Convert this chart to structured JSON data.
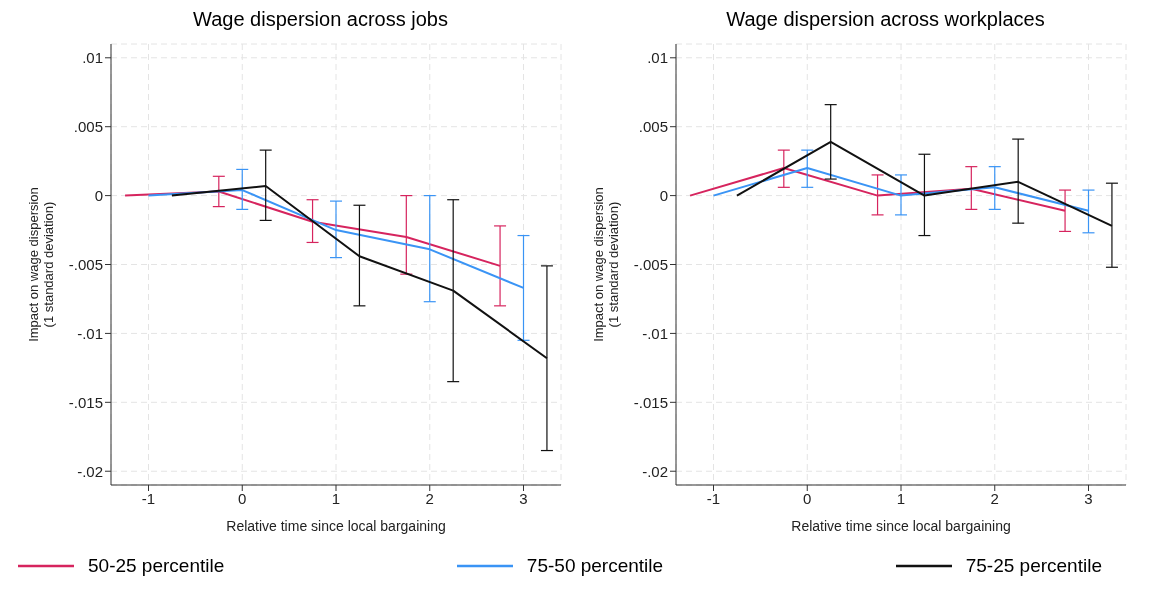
{
  "chart_data": [
    {
      "type": "line",
      "title": "Wage dispersion across jobs",
      "xlabel": "Relative time since local bargaining",
      "ylabel": "Impact on wage dispersion\n(1 standard deviation)",
      "xlim": [
        -1.4,
        3.4
      ],
      "ylim": [
        -0.021,
        0.011
      ],
      "xticks": [
        -1,
        0,
        1,
        2,
        3
      ],
      "yticks": [
        {
          "value": 0.01,
          "label": ".01"
        },
        {
          "value": 0.005,
          "label": ".005"
        },
        0,
        {
          "value": -0.005,
          "label": "-.005"
        },
        {
          "value": -0.01,
          "label": "-.01"
        },
        {
          "value": -0.015,
          "label": "-.015"
        },
        {
          "value": -0.02,
          "label": "-.02"
        }
      ],
      "grid": true,
      "legend": "bottom",
      "marker": "none",
      "line_style": "solid",
      "series": [
        {
          "name": "50-25 percentile",
          "color": "#d6245e",
          "x": [
            -1.25,
            -0.25,
            0.75,
            1.75,
            2.75
          ],
          "values": [
            0,
            0.0003,
            -0.0019,
            -0.003,
            -0.0051
          ],
          "errors": [
            null,
            [
              -0.0008,
              0.0014
            ],
            [
              -0.0034,
              -0.0003
            ],
            [
              -0.0057,
              0
            ],
            [
              -0.008,
              -0.0022
            ]
          ]
        },
        {
          "name": "75-50 percentile",
          "color": "#3a94f5",
          "x": [
            -1,
            0,
            1,
            2,
            3
          ],
          "values": [
            0,
            0.0004,
            -0.0025,
            -0.0039,
            -0.0067
          ],
          "errors": [
            null,
            [
              -0.001,
              0.0019
            ],
            [
              -0.0045,
              -0.0004
            ],
            [
              -0.0077,
              0
            ],
            [
              -0.0105,
              -0.0029
            ]
          ]
        },
        {
          "name": "75-25 percentile",
          "color": "#111111",
          "x": [
            -0.75,
            0.25,
            1.25,
            2.25,
            3.25
          ],
          "values": [
            0,
            0.0007,
            -0.0044,
            -0.0069,
            -0.0118
          ],
          "errors": [
            null,
            [
              -0.0018,
              0.0033
            ],
            [
              -0.008,
              -0.0007
            ],
            [
              -0.0135,
              -0.0003
            ],
            [
              -0.0185,
              -0.0051
            ]
          ]
        }
      ]
    },
    {
      "type": "line",
      "title": "Wage dispersion across workplaces",
      "xlabel": "Relative time since local bargaining",
      "ylabel": "Impact on wage dispersion\n(1 standard deviation)",
      "xlim": [
        -1.4,
        3.4
      ],
      "ylim": [
        -0.021,
        0.011
      ],
      "xticks": [
        -1,
        0,
        1,
        2,
        3
      ],
      "yticks": [
        {
          "value": 0.01,
          "label": ".01"
        },
        {
          "value": 0.005,
          "label": ".005"
        },
        0,
        {
          "value": -0.005,
          "label": "-.005"
        },
        {
          "value": -0.01,
          "label": "-.01"
        },
        {
          "value": -0.015,
          "label": "-.015"
        },
        {
          "value": -0.02,
          "label": "-.02"
        }
      ],
      "grid": true,
      "marker": "none",
      "line_style": "solid",
      "series": [
        {
          "color": "#d6245e",
          "x": [
            -1.25,
            -0.25,
            0.75,
            1.75,
            2.75
          ],
          "values": [
            0,
            0.002,
            0,
            0.0005,
            -0.0011
          ],
          "errors": [
            null,
            [
              0.0006,
              0.0033
            ],
            [
              -0.0014,
              0.0015
            ],
            [
              -0.001,
              0.0021
            ],
            [
              -0.0026,
              0.0004
            ]
          ]
        },
        {
          "color": "#3a94f5",
          "x": [
            -1,
            0,
            1,
            2,
            3
          ],
          "values": [
            0,
            0.002,
            0,
            0.0006,
            -0.0011
          ],
          "errors": [
            null,
            [
              0.0006,
              0.0033
            ],
            [
              -0.0014,
              0.0015
            ],
            [
              -0.001,
              0.0021
            ],
            [
              -0.0027,
              0.0004
            ]
          ]
        },
        {
          "color": "#111111",
          "x": [
            -0.75,
            0.25,
            1.25,
            2.25,
            3.25
          ],
          "values": [
            0,
            0.0039,
            0,
            0.001,
            -0.0022
          ],
          "errors": [
            null,
            [
              0.0012,
              0.0066
            ],
            [
              -0.0029,
              0.003
            ],
            [
              -0.002,
              0.0041
            ],
            [
              -0.0052,
              0.0009
            ]
          ]
        }
      ]
    }
  ]
}
